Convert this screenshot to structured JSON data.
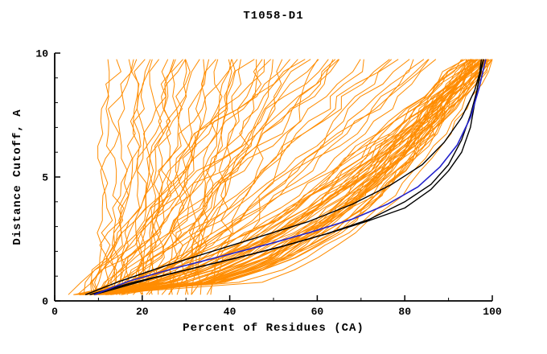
{
  "chart_data": {
    "type": "line",
    "title": "T1058-D1",
    "xlabel": "Percent of Residues (CA)",
    "ylabel": "Distance Cutoff, A",
    "xlim": [
      0,
      100
    ],
    "ylim": [
      0,
      10
    ],
    "x_major_ticks": [
      0,
      20,
      40,
      60,
      80,
      100
    ],
    "x_minor_step": 10,
    "y_major_ticks": [
      0,
      5,
      10
    ],
    "y_minor_step": 1,
    "grid": false,
    "legend": "none",
    "colors": {
      "ensemble": "#FF8C00",
      "highlight": "#000000",
      "selected": "#2222CC",
      "axis": "#000000",
      "background": "#FFFFFF"
    },
    "ensemble_curves": {
      "description": "orange model GDT curves; x(y)=x0+(xtop-x0)*((y-0.25)/9.5)^p with small wander",
      "param_order": [
        "x_at_bottom",
        "x_at_top",
        "shape_exp",
        "wiggle"
      ],
      "y_start": 0.25,
      "y_end": 9.75,
      "y_step": 0.5,
      "params": [
        [
          5,
          97,
          0.4,
          1.5
        ],
        [
          7,
          98,
          0.45,
          1.2
        ],
        [
          9,
          99,
          0.5,
          1.8
        ],
        [
          6,
          96,
          0.35,
          2.0
        ],
        [
          8,
          95,
          0.55,
          1.5
        ],
        [
          10,
          97,
          0.42,
          1.3
        ],
        [
          12,
          98,
          0.48,
          1.7
        ],
        [
          5,
          94,
          0.6,
          2.2
        ],
        [
          7,
          99,
          0.38,
          1.4
        ],
        [
          9,
          96,
          0.52,
          1.6
        ],
        [
          11,
          97,
          0.44,
          1.9
        ],
        [
          6,
          98,
          0.36,
          1.2
        ],
        [
          8,
          97,
          0.58,
          2.0
        ],
        [
          10,
          99,
          0.41,
          1.5
        ],
        [
          13,
          96,
          0.47,
          1.8
        ],
        [
          5,
          95,
          0.53,
          2.1
        ],
        [
          7,
          96,
          0.39,
          1.3
        ],
        [
          9,
          98,
          0.56,
          1.6
        ],
        [
          12,
          99,
          0.43,
          1.4
        ],
        [
          6,
          97,
          0.49,
          2.3
        ],
        [
          8,
          94,
          0.62,
          1.7
        ],
        [
          10,
          96,
          0.37,
          1.5
        ],
        [
          14,
          98,
          0.51,
          1.9
        ],
        [
          5,
          100,
          0.32,
          1.0
        ],
        [
          7,
          95,
          0.59,
          2.0
        ],
        [
          9,
          97,
          0.4,
          1.6
        ],
        [
          11,
          98,
          0.54,
          1.3
        ],
        [
          6,
          94,
          0.65,
          2.2
        ],
        [
          8,
          100,
          0.3,
          1.0
        ],
        [
          10,
          98,
          0.57,
          1.8
        ],
        [
          12,
          95,
          0.45,
          1.4
        ],
        [
          5,
          96,
          0.5,
          2.0
        ],
        [
          7,
          97,
          0.63,
          1.6
        ],
        [
          9,
          95,
          0.42,
          1.9
        ],
        [
          13,
          99,
          0.48,
          1.2
        ],
        [
          6,
          96,
          0.55,
          1.7
        ],
        [
          8,
          98,
          0.44,
          2.1
        ],
        [
          10,
          94,
          0.6,
          1.5
        ],
        [
          11,
          99,
          0.39,
          1.3
        ],
        [
          7,
          93,
          0.68,
          1.8
        ],
        [
          9,
          99,
          0.47,
          1.6
        ],
        [
          5,
          98,
          0.52,
          1.4
        ],
        [
          12,
          97,
          0.41,
          2.0
        ],
        [
          8,
          96,
          0.66,
          1.5
        ],
        [
          6,
          99,
          0.43,
          1.7
        ],
        [
          10,
          97,
          0.58,
          1.9
        ],
        [
          14,
          95,
          0.49,
          1.3
        ],
        [
          7,
          98,
          0.37,
          1.6
        ],
        [
          9,
          94,
          0.64,
          2.2
        ],
        [
          11,
          96,
          0.53,
          1.4
        ],
        [
          8,
          60,
          0.9,
          2.0
        ],
        [
          10,
          72,
          0.8,
          2.5
        ],
        [
          12,
          55,
          1.0,
          1.8
        ],
        [
          6,
          80,
          0.75,
          2.2
        ],
        [
          9,
          48,
          1.1,
          1.5
        ],
        [
          11,
          85,
          0.7,
          2.0
        ],
        [
          14,
          65,
          0.95,
          2.4
        ],
        [
          7,
          70,
          0.85,
          1.7
        ],
        [
          10,
          52,
          1.2,
          2.1
        ],
        [
          13,
          78,
          0.72,
          1.9
        ],
        [
          5,
          62,
          1.05,
          2.3
        ],
        [
          8,
          88,
          0.68,
          1.6
        ],
        [
          12,
          45,
          1.15,
          2.0
        ],
        [
          9,
          75,
          0.78,
          2.5
        ],
        [
          15,
          58,
          0.92,
          1.8
        ],
        [
          6,
          68,
          1.0,
          2.2
        ],
        [
          10,
          82,
          0.74,
          1.5
        ],
        [
          13,
          50,
          1.25,
          2.4
        ],
        [
          7,
          86,
          0.7,
          1.9
        ],
        [
          11,
          63,
          0.88,
          2.1
        ],
        [
          8,
          42,
          1.3,
          1.7
        ],
        [
          14,
          73,
          0.82,
          2.3
        ],
        [
          5,
          56,
          1.08,
          2.0
        ],
        [
          9,
          84,
          0.76,
          1.6
        ],
        [
          12,
          67,
          0.9,
          2.2
        ],
        [
          10,
          16,
          1.0,
          1.8
        ],
        [
          14,
          20,
          1.1,
          1.5
        ],
        [
          18,
          25,
          0.9,
          2.0
        ],
        [
          22,
          30,
          1.0,
          1.6
        ],
        [
          26,
          34,
          1.2,
          1.9
        ],
        [
          30,
          40,
          0.95,
          1.4
        ],
        [
          12,
          15,
          1.05,
          2.2
        ],
        [
          16,
          22,
          0.85,
          1.7
        ],
        [
          20,
          26,
          1.15,
          1.5
        ],
        [
          24,
          33,
          0.9,
          2.1
        ],
        [
          28,
          38,
          1.0,
          1.8
        ],
        [
          32,
          44,
          1.1,
          1.6
        ],
        [
          9,
          13,
          1.2,
          1.4
        ],
        [
          13,
          19,
          0.9,
          2.0
        ],
        [
          17,
          28,
          1.0,
          1.7
        ],
        [
          21,
          27,
          1.25,
          1.5
        ],
        [
          25,
          36,
          0.88,
          1.9
        ],
        [
          29,
          42,
          1.05,
          1.6
        ],
        [
          33,
          48,
          0.92,
          2.2
        ],
        [
          11,
          18,
          1.1,
          1.8
        ],
        [
          15,
          24,
          0.95,
          1.5
        ],
        [
          19,
          31,
          1.08,
          2.0
        ],
        [
          23,
          29,
          1.3,
          1.7
        ],
        [
          27,
          45,
          0.8,
          1.4
        ],
        [
          31,
          39,
          1.12,
          1.9
        ],
        [
          35,
          52,
          0.85,
          1.6
        ],
        [
          10,
          21,
          1.0,
          2.3
        ],
        [
          18,
          35,
          0.78,
          1.5
        ],
        [
          26,
          50,
          0.82,
          2.0
        ],
        [
          34,
          60,
          0.75,
          1.8
        ]
      ]
    },
    "highlight_curves": [
      [
        [
          8,
          0.25
        ],
        [
          18,
          0.75
        ],
        [
          30,
          1.25
        ],
        [
          42,
          1.75
        ],
        [
          53,
          2.25
        ],
        [
          63,
          2.75
        ],
        [
          72,
          3.25
        ],
        [
          80,
          3.75
        ],
        [
          86,
          4.5
        ],
        [
          90,
          5.25
        ],
        [
          93,
          6.0
        ],
        [
          95,
          7.0
        ],
        [
          96,
          8.0
        ],
        [
          97,
          9.0
        ],
        [
          97.5,
          9.75
        ]
      ],
      [
        [
          9,
          0.25
        ],
        [
          22,
          0.9
        ],
        [
          36,
          1.5
        ],
        [
          50,
          2.1
        ],
        [
          62,
          2.7
        ],
        [
          72,
          3.3
        ],
        [
          80,
          4.0
        ],
        [
          86,
          4.7
        ],
        [
          90,
          5.5
        ],
        [
          93,
          6.5
        ],
        [
          95,
          7.5
        ],
        [
          96.5,
          8.5
        ],
        [
          98,
          9.75
        ]
      ],
      [
        [
          7,
          0.25
        ],
        [
          15,
          0.8
        ],
        [
          25,
          1.4
        ],
        [
          36,
          2.0
        ],
        [
          47,
          2.6
        ],
        [
          58,
          3.2
        ],
        [
          68,
          3.9
        ],
        [
          77,
          4.7
        ],
        [
          84,
          5.5
        ],
        [
          89,
          6.4
        ],
        [
          93,
          7.4
        ],
        [
          96,
          8.5
        ],
        [
          98,
          9.75
        ]
      ]
    ],
    "selected_curve": [
      [
        9,
        0.25
      ],
      [
        17,
        0.8
      ],
      [
        27,
        1.3
      ],
      [
        38,
        1.8
      ],
      [
        49,
        2.3
      ],
      [
        59,
        2.8
      ],
      [
        68,
        3.3
      ],
      [
        76,
        3.9
      ],
      [
        83,
        4.6
      ],
      [
        88,
        5.4
      ],
      [
        92,
        6.3
      ],
      [
        95,
        7.4
      ],
      [
        97,
        8.6
      ],
      [
        98.5,
        9.75
      ]
    ]
  }
}
